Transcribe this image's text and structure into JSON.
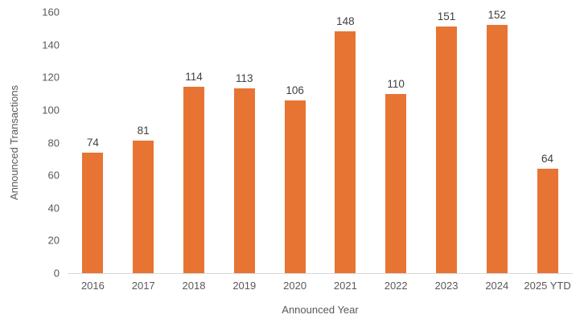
{
  "chart_data": {
    "type": "bar",
    "title": "",
    "categories": [
      "2016",
      "2017",
      "2018",
      "2019",
      "2020",
      "2021",
      "2022",
      "2023",
      "2024",
      "2025 YTD"
    ],
    "values": [
      74,
      81,
      114,
      113,
      106,
      148,
      110,
      151,
      152,
      64
    ],
    "xlabel": "Announced Year",
    "ylabel": "Announced Transactions",
    "ylim": [
      0,
      160
    ],
    "yticks": [
      0,
      20,
      40,
      60,
      80,
      100,
      120,
      140,
      160
    ],
    "grid": "off",
    "legend": "none",
    "colors": {
      "bar": "#e87433",
      "tick_text": "#595959",
      "value_label_text": "#404040",
      "axis_line": "#d9d9d9",
      "background": "#ffffff"
    }
  }
}
